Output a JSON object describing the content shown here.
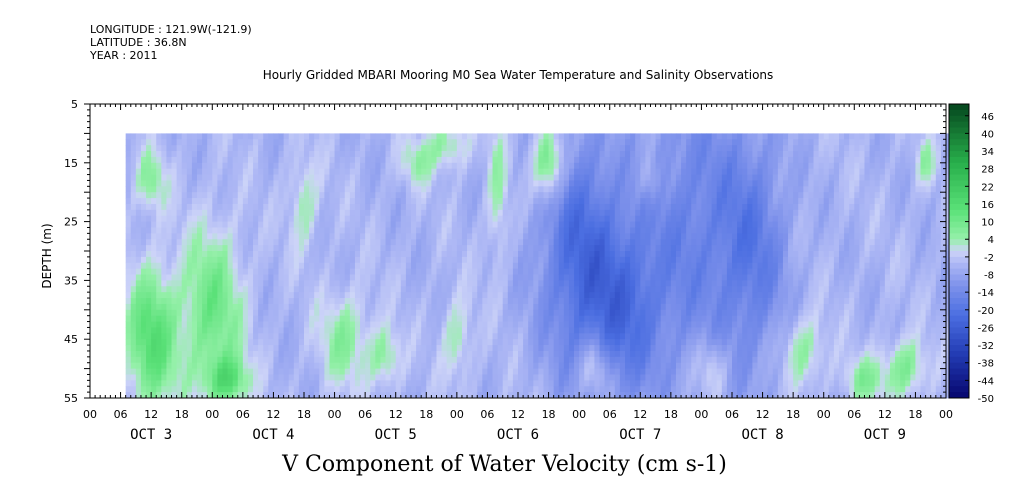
{
  "header": {
    "longitude": "LONGITUDE : 121.9W(-121.9)",
    "latitude": "LATITUDE : 36.8N",
    "year": "YEAR : 2011"
  },
  "chart_data": {
    "type": "heatmap",
    "title": "Hourly Gridded MBARI Mooring M0 Sea Water Temperature and Salinity Observations",
    "xlabel": "V Component of Water Velocity (cm s-1)",
    "ylabel": "DEPTH (m)",
    "y_ticks": [
      5,
      15,
      25,
      35,
      45,
      55
    ],
    "ylim": [
      55,
      5
    ],
    "depth_range": [
      10,
      55
    ],
    "hour_ticks": [
      "00",
      "06",
      "12",
      "18",
      "00",
      "06",
      "12",
      "18",
      "00",
      "06",
      "12",
      "18",
      "00",
      "06",
      "12",
      "18",
      "00",
      "06",
      "12",
      "18",
      "00",
      "06",
      "12",
      "18",
      "00",
      "06",
      "12",
      "18",
      "00"
    ],
    "day_labels": [
      "OCT 3",
      "OCT 4",
      "OCT 5",
      "OCT 6",
      "OCT 7",
      "OCT 8",
      "OCT 9"
    ],
    "time_range_hours": [
      7,
      169
    ],
    "colorbar": {
      "ticks": [
        "46",
        "40",
        "34",
        "28",
        "22",
        "16",
        "10",
        "4",
        "-2",
        "-8",
        "-14",
        "-20",
        "-26",
        "-32",
        "-38",
        "-44",
        "-50"
      ],
      "range": [
        -50,
        50
      ]
    },
    "colors": {
      "strong_negative": "#2a3f9a",
      "negative": "#4e6fe0",
      "slight_negative": "#9aa8ee",
      "near_zero": "#c8cef6",
      "positive": "#7de89a",
      "strong_positive": "#1f9f40"
    }
  }
}
